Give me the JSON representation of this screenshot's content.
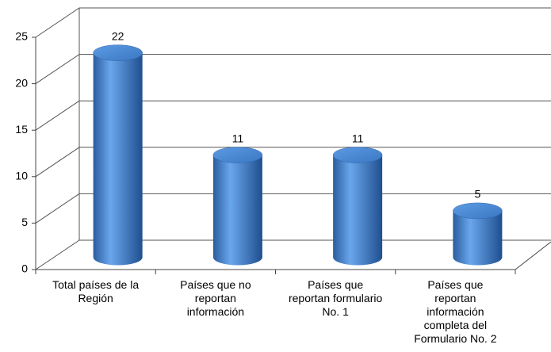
{
  "chart_data": {
    "type": "cylinder",
    "categories": [
      "Total países de la\nRegión",
      "Países que no\nreportan\ninformación",
      "Países que\nreportan formulario\nNo. 1",
      "Países que\nreportan\ninformación\ncompleta del\nFormulario No. 2"
    ],
    "values": [
      22,
      11,
      11,
      5
    ],
    "color": "#4a8ad8",
    "ylim": [
      0,
      25
    ],
    "yticks": [
      0,
      5,
      10,
      15,
      20,
      25
    ],
    "grid": true
  }
}
